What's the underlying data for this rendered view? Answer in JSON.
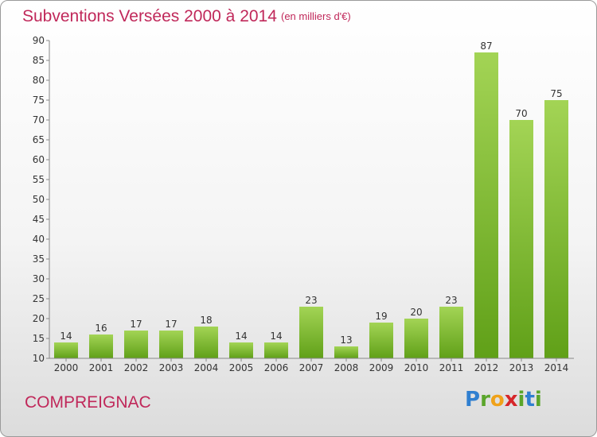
{
  "header": {
    "title": "Subventions Versées 2000 à 2014",
    "subtitle": "(en milliers d'€)"
  },
  "footer": {
    "commune": "COMPREIGNAC",
    "logo_text": "Proxiti"
  },
  "colors": {
    "title": "#c0285a",
    "bar_light": "#9dd04f",
    "bar_dark": "#64a11a",
    "axis": "#888888",
    "grid": "#d8d8d8"
  },
  "chart_data": {
    "type": "bar",
    "categories": [
      "2000",
      "2001",
      "2002",
      "2003",
      "2004",
      "2005",
      "2006",
      "2007",
      "2008",
      "2009",
      "2010",
      "2011",
      "2012",
      "2013",
      "2014"
    ],
    "values": [
      14,
      16,
      17,
      17,
      18,
      14,
      14,
      23,
      13,
      19,
      20,
      23,
      87,
      70,
      75
    ],
    "ylim": [
      10,
      90
    ],
    "yticks": [
      10,
      15,
      20,
      25,
      30,
      35,
      40,
      45,
      50,
      55,
      60,
      65,
      70,
      75,
      80,
      85,
      90
    ],
    "grid": false
  }
}
